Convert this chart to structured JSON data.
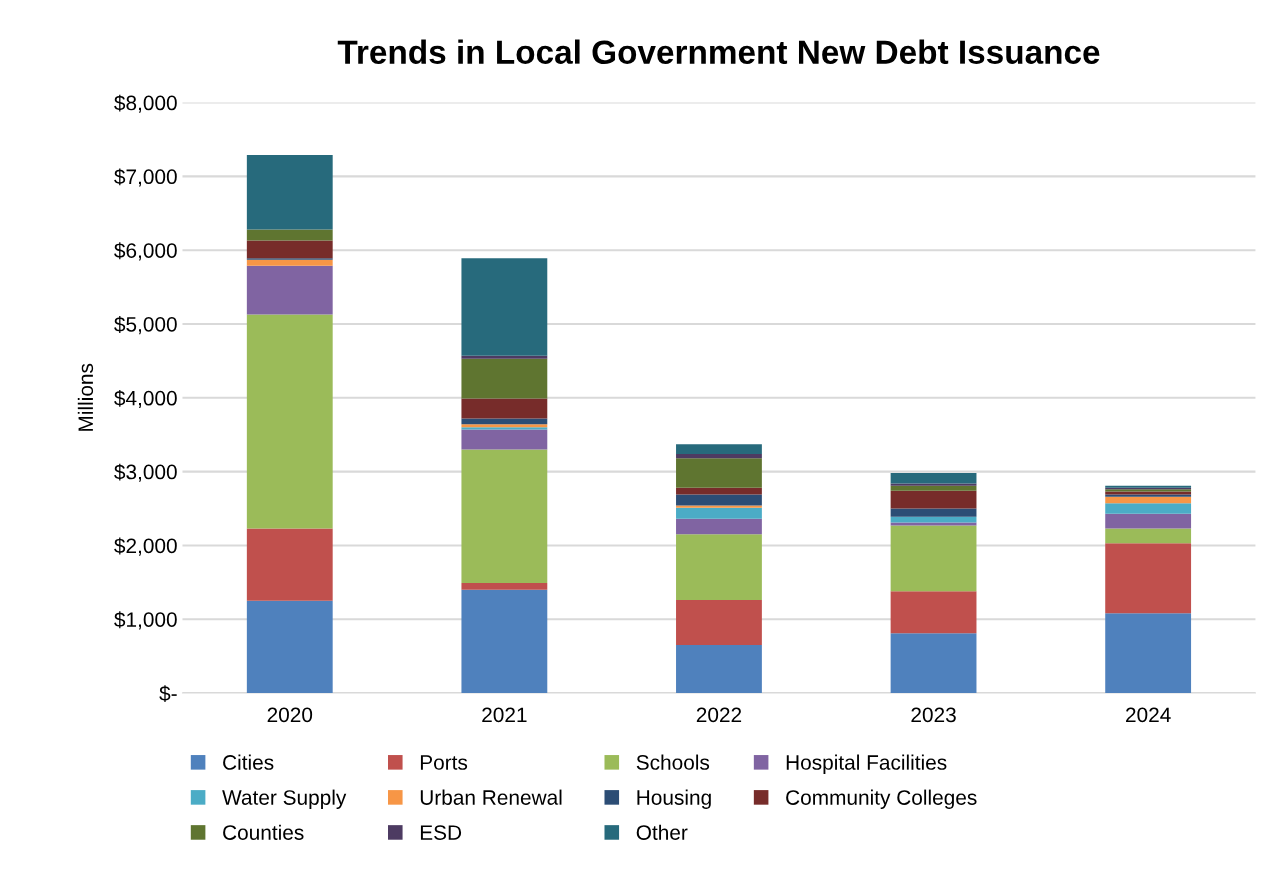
{
  "chart_data": {
    "type": "bar",
    "title": "Trends in Local Government New Debt Issuance",
    "ylabel": "Millions",
    "stacked": true,
    "grid": "y",
    "legend": "bottom",
    "categories": [
      "2020",
      "2021",
      "2022",
      "2023",
      "2024"
    ],
    "ylim": [
      0,
      8000
    ],
    "yticks": [
      {
        "value": 0,
        "label": "$-"
      },
      {
        "value": 1000,
        "label": "$1,000"
      },
      {
        "value": 2000,
        "label": "$2,000"
      },
      {
        "value": 3000,
        "label": "$3,000"
      },
      {
        "value": 4000,
        "label": "$4,000"
      },
      {
        "value": 5000,
        "label": "$5,000"
      },
      {
        "value": 6000,
        "label": "$6,000"
      },
      {
        "value": 7000,
        "label": "$7,000"
      },
      {
        "value": 8000,
        "label": "$8,000"
      }
    ],
    "series": [
      {
        "name": "Cities",
        "color": "#4f81bd",
        "values": [
          1250,
          1400,
          650,
          810,
          1080
        ]
      },
      {
        "name": "Ports",
        "color": "#c0504d",
        "values": [
          980,
          90,
          610,
          570,
          950
        ]
      },
      {
        "name": "Schools",
        "color": "#9bbb59",
        "values": [
          2900,
          1810,
          890,
          890,
          200
        ]
      },
      {
        "name": "Hospital Facilities",
        "color": "#8064a2",
        "values": [
          660,
          270,
          210,
          40,
          200
        ]
      },
      {
        "name": "Water Supply",
        "color": "#4bacc6",
        "values": [
          null,
          30,
          150,
          80,
          140
        ]
      },
      {
        "name": "Urban Renewal",
        "color": "#f79646",
        "values": [
          80,
          40,
          30,
          null,
          90
        ]
      },
      {
        "name": "Housing",
        "color": "#2c4d75",
        "values": [
          20,
          80,
          150,
          110,
          30
        ]
      },
      {
        "name": "Community Colleges",
        "color": "#772c2a",
        "values": [
          240,
          270,
          90,
          240,
          40
        ]
      },
      {
        "name": "Counties",
        "color": "#5f7530",
        "values": [
          150,
          540,
          400,
          70,
          30
        ]
      },
      {
        "name": "ESD",
        "color": "#4d3b62",
        "values": [
          null,
          40,
          60,
          30,
          20
        ]
      },
      {
        "name": "Other",
        "color": "#276a7c",
        "values": [
          1010,
          1320,
          130,
          140,
          30
        ]
      }
    ]
  }
}
